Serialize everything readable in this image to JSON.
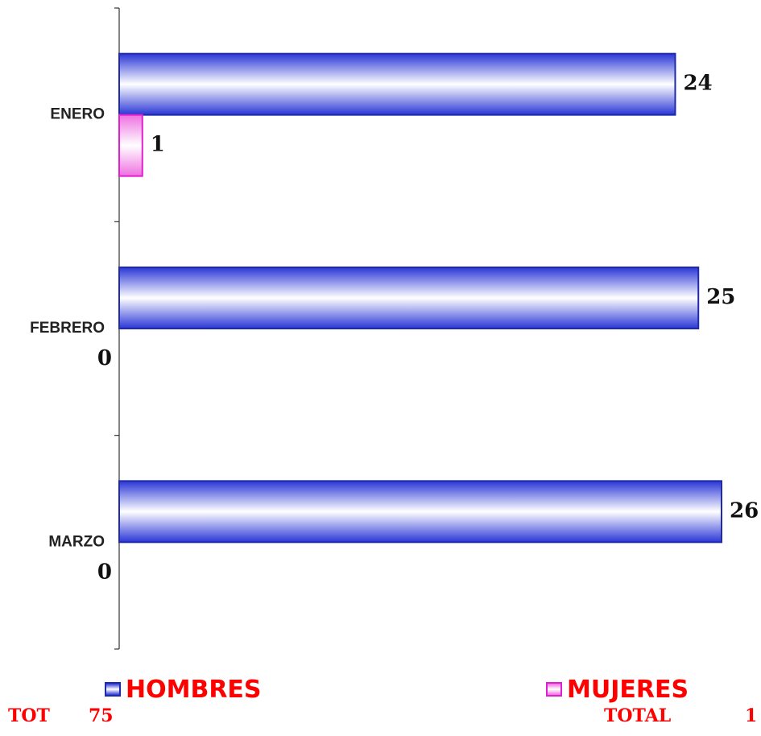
{
  "chart_data": {
    "type": "bar",
    "orientation": "horizontal",
    "categories": [
      "ENERO",
      "FEBRERO",
      "MARZO"
    ],
    "series": [
      {
        "name": "HOMBRES",
        "values": [
          24,
          25,
          26
        ],
        "color": "#1e2aa8"
      },
      {
        "name": "MUJERES",
        "values": [
          1,
          0,
          0
        ],
        "color": "#e020d0"
      }
    ],
    "xlim": [
      0,
      26
    ],
    "grid": false,
    "legend_position": "bottom"
  },
  "legend": {
    "hombres_label": "HOMBRES",
    "mujeres_label": "MUJERES",
    "text_color": "#ff0000"
  },
  "totals": {
    "tot_label": "TOT",
    "hombres_total": "75",
    "total_label": "TOTAL",
    "mujeres_total": "1",
    "text_color": "#ff0000"
  }
}
